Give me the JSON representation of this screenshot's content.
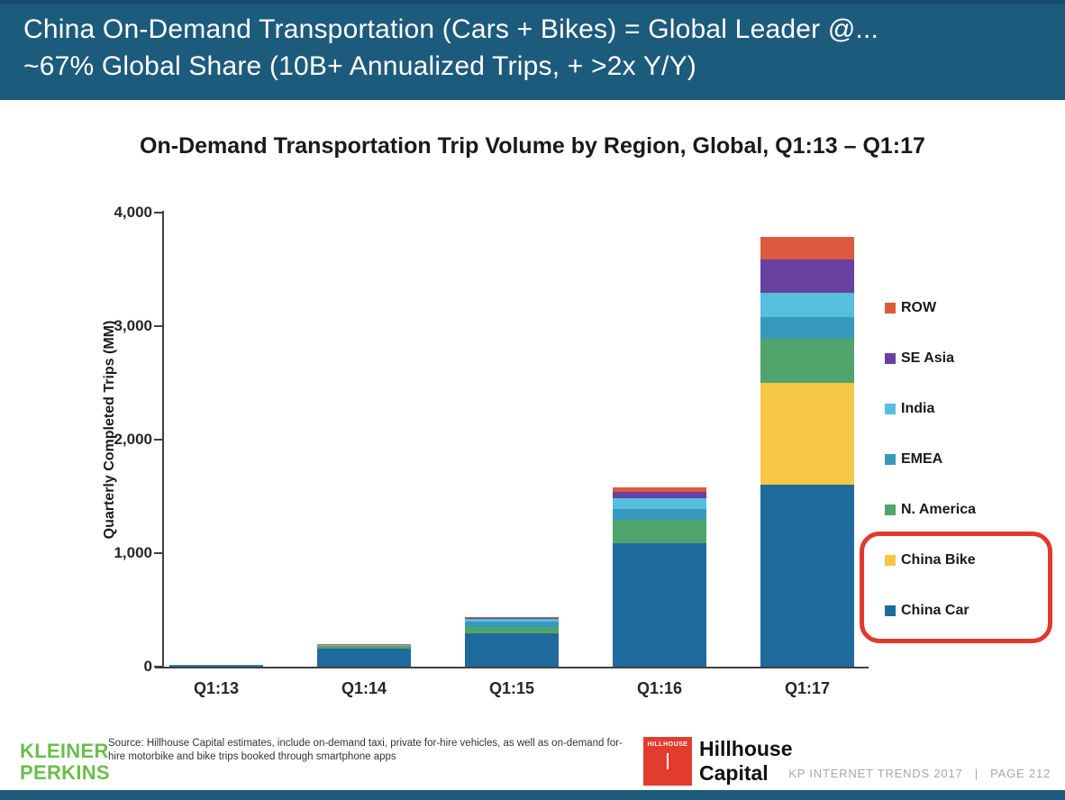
{
  "slide": {
    "header": {
      "line1": "China On-Demand Transportation (Cars + Bikes) = Global Leader @...",
      "line2": "~67% Global Share (10B+ Annualized Trips, + >2x Y/Y)",
      "bg_color": "#1D5B7C"
    },
    "chart_title": "On-Demand Transportation Trip Volume by Region, Global, Q1:13 – Q1:17",
    "footer": {
      "kleiner_line1": "KLEINER",
      "kleiner_line2": "PERKINS",
      "kleiner_color": "#6CBE4B",
      "source_text": "Source: Hillhouse Capital estimates, include on-demand taxi, private for-hire vehicles, as well as on-demand for-hire motorbike and bike trips booked through smartphone apps",
      "hillhouse_logo_text": "HILLHOUSE",
      "hillhouse_name_line1": "Hillhouse",
      "hillhouse_name_line2": "Capital",
      "hillhouse_red": "#E23C2F",
      "page_label": "KP INTERNET TRENDS 2017   |   PAGE 212"
    }
  },
  "chart_data": {
    "type": "bar",
    "stacked": true,
    "title": "On-Demand Transportation Trip Volume by Region, Global, Q1:13 – Q1:17",
    "ylabel": "Quarterly Completed Trips (MM)",
    "xlabel": "",
    "categories": [
      "Q1:13",
      "Q1:14",
      "Q1:15",
      "Q1:16",
      "Q1:17"
    ],
    "ylim": [
      0,
      4000
    ],
    "yticks": [
      0,
      1000,
      2000,
      3000,
      4000
    ],
    "grid": false,
    "legend_position": "right",
    "series": [
      {
        "name": "China Car",
        "color": "#1F6A9D",
        "values": [
          15,
          155,
          290,
          1090,
          1600
        ]
      },
      {
        "name": "China Bike",
        "color": "#F6C645",
        "values": [
          0,
          0,
          0,
          0,
          900
        ]
      },
      {
        "name": "N. America",
        "color": "#4FA46C",
        "values": [
          2,
          30,
          60,
          200,
          390
        ]
      },
      {
        "name": "EMEA",
        "color": "#3899BE",
        "values": [
          1,
          5,
          45,
          95,
          190
        ]
      },
      {
        "name": "India",
        "color": "#56BFDC",
        "values": [
          0,
          3,
          25,
          100,
          210
        ]
      },
      {
        "name": "SE Asia",
        "color": "#6841A1",
        "values": [
          0,
          2,
          8,
          55,
          295
        ]
      },
      {
        "name": "ROW",
        "color": "#DC5B3E",
        "values": [
          0,
          2,
          5,
          40,
          200
        ]
      }
    ],
    "legend_order_top_to_bottom": [
      "ROW",
      "SE Asia",
      "India",
      "EMEA",
      "N. America",
      "China Bike",
      "China Car"
    ],
    "legend_highlight": [
      "China Bike",
      "China Car"
    ]
  }
}
